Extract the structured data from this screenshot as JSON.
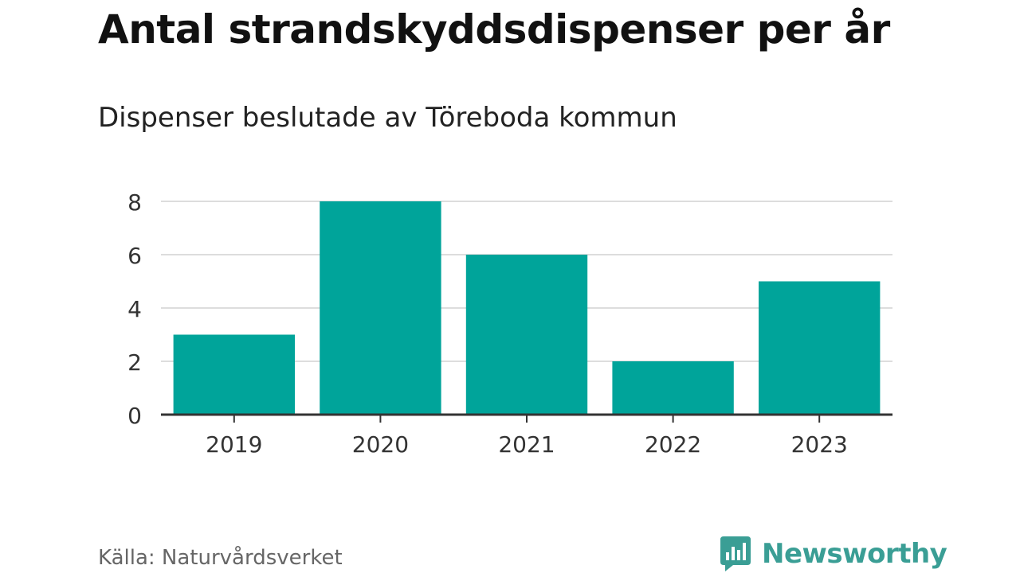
{
  "title": "Antal strandskyddsdispenser per år",
  "subtitle": "Dispenser beslutade av Töreboda kommun",
  "source": "Källa: Naturvårdsverket",
  "brand": {
    "name": "Newsworthy",
    "color": "#3a9e95",
    "icon": "newsworthy-logo-icon"
  },
  "chart_data": {
    "type": "bar",
    "title": "Antal strandskyddsdispenser per år",
    "subtitle": "Dispenser beslutade av Töreboda kommun",
    "categories": [
      "2019",
      "2020",
      "2021",
      "2022",
      "2023"
    ],
    "values": [
      3,
      8,
      6,
      2,
      5
    ],
    "xlabel": "",
    "ylabel": "",
    "ylim": [
      0,
      8
    ],
    "yticks": [
      0,
      2,
      4,
      6,
      8
    ],
    "grid": true,
    "bar_color": "#00a49a",
    "grid_color": "#dddddd",
    "axis_color": "#333333"
  }
}
